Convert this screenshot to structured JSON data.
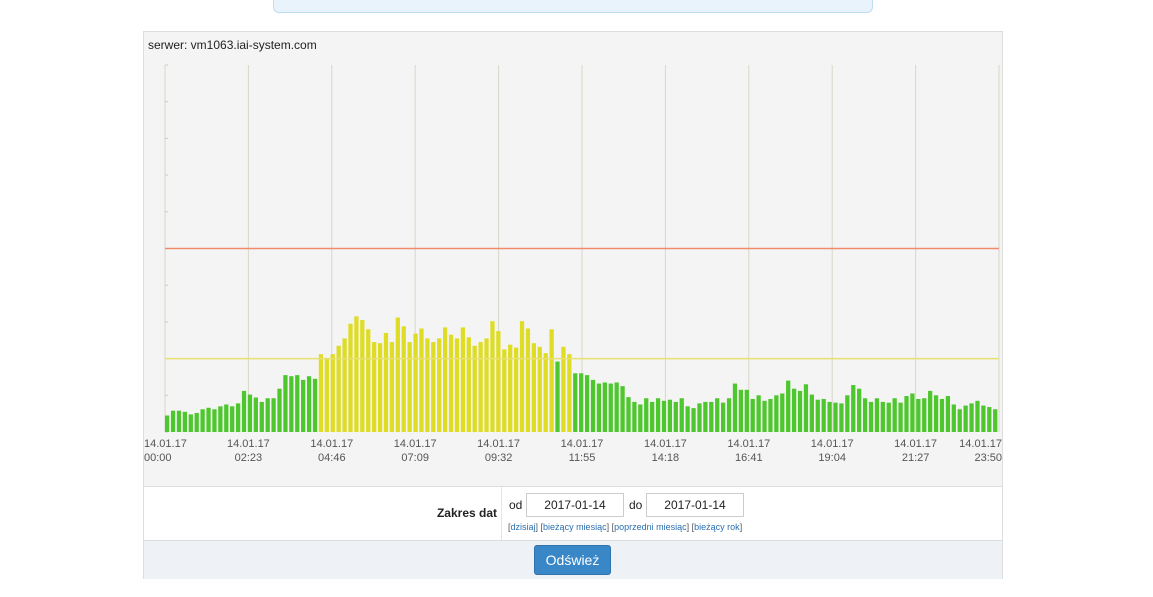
{
  "server_label": "serwer: vm1063.iai-system.com",
  "form": {
    "range_label": "Zakres dat",
    "from_label": "od",
    "from_value": "2017-01-14",
    "to_label": "do",
    "to_value": "2017-01-14",
    "quick_links": [
      "dzisiaj",
      "bieżący miesiąc",
      "poprzedni miesiąc",
      "bieżący rok"
    ],
    "refresh_label": "Odśwież"
  },
  "colors": {
    "normal": "#4ec72e",
    "warning": "#dedc24",
    "warning_line": "#e8e070",
    "critical_line": "#ef8a6a",
    "grid": "#d8d8c8"
  },
  "chart_data": {
    "type": "bar",
    "x_labels": [
      [
        "14.01.17",
        "00:00"
      ],
      [
        "14.01.17",
        "02:23"
      ],
      [
        "14.01.17",
        "04:46"
      ],
      [
        "14.01.17",
        "07:09"
      ],
      [
        "14.01.17",
        "09:32"
      ],
      [
        "14.01.17",
        "11:55"
      ],
      [
        "14.01.17",
        "14:18"
      ],
      [
        "14.01.17",
        "16:41"
      ],
      [
        "14.01.17",
        "19:04"
      ],
      [
        "14.01.17",
        "21:27"
      ],
      [
        "14.01.17",
        "23:50"
      ]
    ],
    "ylim": [
      0,
      10
    ],
    "warning_threshold": 2.0,
    "critical_threshold": 5.0,
    "values": [
      0.45,
      0.58,
      0.58,
      0.55,
      0.48,
      0.52,
      0.62,
      0.66,
      0.62,
      0.7,
      0.75,
      0.7,
      0.78,
      1.12,
      1.02,
      0.94,
      0.82,
      0.92,
      0.92,
      1.18,
      1.55,
      1.52,
      1.55,
      1.42,
      1.52,
      1.45,
      2.12,
      2.02,
      2.12,
      2.35,
      2.55,
      2.95,
      3.15,
      3.05,
      2.8,
      2.45,
      2.42,
      2.7,
      2.45,
      3.12,
      2.88,
      2.45,
      2.68,
      2.82,
      2.55,
      2.45,
      2.55,
      2.85,
      2.65,
      2.55,
      2.85,
      2.58,
      2.35,
      2.45,
      2.55,
      3.02,
      2.75,
      2.25,
      2.38,
      2.3,
      3.02,
      2.82,
      2.42,
      2.32,
      2.15,
      2.8,
      1.92,
      2.32,
      2.12,
      1.6,
      1.6,
      1.55,
      1.42,
      1.32,
      1.35,
      1.32,
      1.35,
      1.25,
      0.95,
      0.82,
      0.75,
      0.92,
      0.82,
      0.92,
      0.85,
      0.88,
      0.82,
      0.92,
      0.7,
      0.65,
      0.78,
      0.82,
      0.82,
      0.92,
      0.8,
      0.92,
      1.32,
      1.15,
      1.15,
      0.9,
      1.0,
      0.85,
      0.9,
      1.0,
      1.05,
      1.4,
      1.18,
      1.12,
      1.3,
      1.02,
      0.88,
      0.9,
      0.82,
      0.8,
      0.78,
      1.0,
      1.28,
      1.18,
      0.92,
      0.82,
      0.92,
      0.82,
      0.8,
      0.92,
      0.8,
      0.98,
      1.05,
      0.9,
      0.92,
      1.12,
      1.0,
      0.9,
      0.98,
      0.75,
      0.62,
      0.72,
      0.78,
      0.85,
      0.72,
      0.68,
      0.62
    ]
  }
}
